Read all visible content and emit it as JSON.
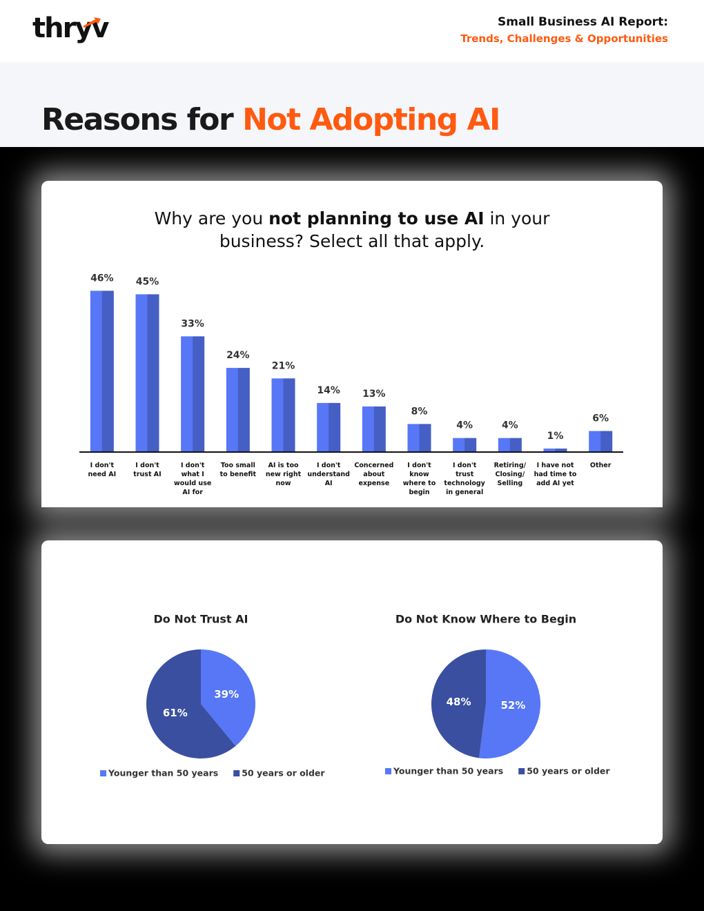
{
  "header": {
    "brand": "thryv",
    "report_title": "Small Business AI Report:",
    "report_subtitle": "Trends, Challenges & Opportunities",
    "title_prefix": "Reasons for",
    "title_highlight": "Not Adopting AI"
  },
  "chart_data": [
    {
      "type": "bar",
      "title": [
        "Why are you",
        "not planning to use AI",
        "in your business? Select all that apply."
      ],
      "categories": [
        "I don't need AI",
        "I don't trust AI",
        "I don't what I would use AI for",
        "Too small to benefit",
        "AI is too new right now",
        "I don't understand AI",
        "Concerned about expense",
        "I don't know where to begin",
        "I don't trust technology in general",
        "Retiring/ Closing/ Selling",
        "I have not had time to add AI yet",
        "Other"
      ],
      "values": [
        46,
        45,
        33,
        24,
        21,
        14,
        13,
        8,
        4,
        4,
        1,
        6
      ],
      "value_labels": [
        "46%",
        "45%",
        "33%",
        "24%",
        "21%",
        "14%",
        "13%",
        "8%",
        "4%",
        "4%",
        "1%",
        "6%"
      ],
      "color": "#5777f7",
      "ylim": [
        0,
        50
      ]
    },
    {
      "type": "pie",
      "title": "Do Not Trust AI",
      "categories": [
        "Younger than 50 years",
        "50 years or older"
      ],
      "values": [
        39,
        61
      ],
      "value_labels": [
        "39%",
        "61%"
      ],
      "colors": [
        "#5777f7",
        "#3a4f9f"
      ]
    },
    {
      "type": "pie",
      "title": "Do Not Know Where to Begin",
      "categories": [
        "Younger than 50 years",
        "50 years or older"
      ],
      "values": [
        52,
        48
      ],
      "value_labels": [
        "52%",
        "48%"
      ],
      "colors": [
        "#5777f7",
        "#3a4f9f"
      ]
    }
  ]
}
